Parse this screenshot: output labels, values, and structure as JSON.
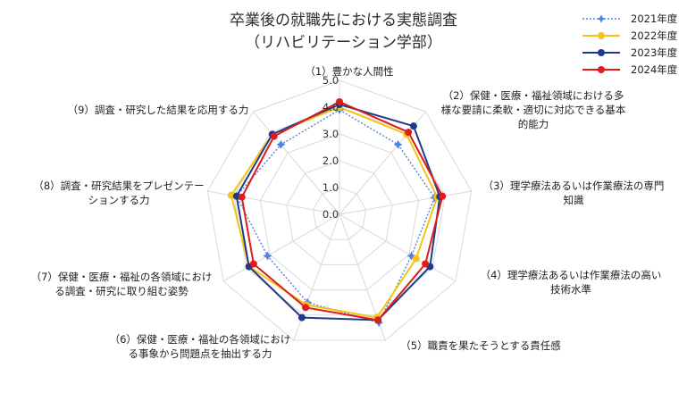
{
  "chart_data": {
    "type": "radar",
    "title_lines": [
      "卒業後の就職先における実態調査",
      "（リハビリテーション学部）"
    ],
    "axes": [
      "（1）豊かな人間性",
      "（2）保健・医療・福祉領域における多様な要請に柔軟・適切に対応できる基本的能力",
      "（3）理学療法あるいは作業療法の専門知識",
      "（4）理学療法あるいは作業療法の高い技術水準",
      "（5）職責を果たそうとする責任感",
      "（6）保健・医療・福祉の各領域における事象から問題点を抽出する力",
      "（7）保健・医療・福祉の各領域における調査・研究に取り組む姿勢",
      "（8）調査・研究結果をプレゼンテーションする力",
      "（9）調査・研究した結果を応用する力"
    ],
    "axis_label_lines": [
      [
        "（1）豊かな人間性"
      ],
      [
        "（2）保健・医療・福祉領域における多",
        "様な要請に柔軟・適切に対応できる基本",
        "的能力"
      ],
      [
        "（3）理学療法あるいは作業療法の専門",
        "知識"
      ],
      [
        "（4）理学療法あるいは作業療法の高い",
        "技術水準"
      ],
      [
        "（5）職責を果たそうとする責任感"
      ],
      [
        "（6）保健・医療・福祉の各領域におけ",
        "る事象から問題点を抽出する力"
      ],
      [
        "（7）保健・医療・福祉の各領域におけ",
        "る調査・研究に取り組む姿勢"
      ],
      [
        "（8）調査・研究結果をプレゼンテー",
        "ションする力"
      ],
      [
        "（9）調査・研究した結果を応用する力"
      ]
    ],
    "radial_ticks": [
      "0.0",
      "1.0",
      "2.0",
      "3.0",
      "4.0",
      "5.0"
    ],
    "rmin": 0,
    "rmax": 5,
    "series": [
      {
        "name": "2021年度",
        "color": "#4f81e0",
        "style": "dotted",
        "marker": "star",
        "values": [
          3.9,
          3.4,
          3.6,
          3.1,
          4.3,
          3.5,
          3.1,
          3.9,
          3.4
        ]
      },
      {
        "name": "2022年度",
        "color": "#f2c414",
        "style": "solid",
        "marker": "circle",
        "values": [
          4.0,
          3.9,
          3.7,
          3.3,
          4.1,
          3.6,
          3.9,
          4.1,
          3.9
        ]
      },
      {
        "name": "2023年度",
        "color": "#1f3a8a",
        "style": "solid",
        "marker": "circle",
        "values": [
          4.1,
          4.3,
          3.8,
          3.9,
          4.2,
          4.1,
          3.9,
          3.9,
          3.9
        ]
      },
      {
        "name": "2024年度",
        "color": "#e01b1b",
        "style": "solid",
        "marker": "circle",
        "values": [
          4.2,
          4.0,
          3.9,
          3.7,
          4.2,
          3.7,
          3.7,
          3.7,
          3.8
        ]
      }
    ],
    "grid": true,
    "legend_position": "top-right"
  }
}
